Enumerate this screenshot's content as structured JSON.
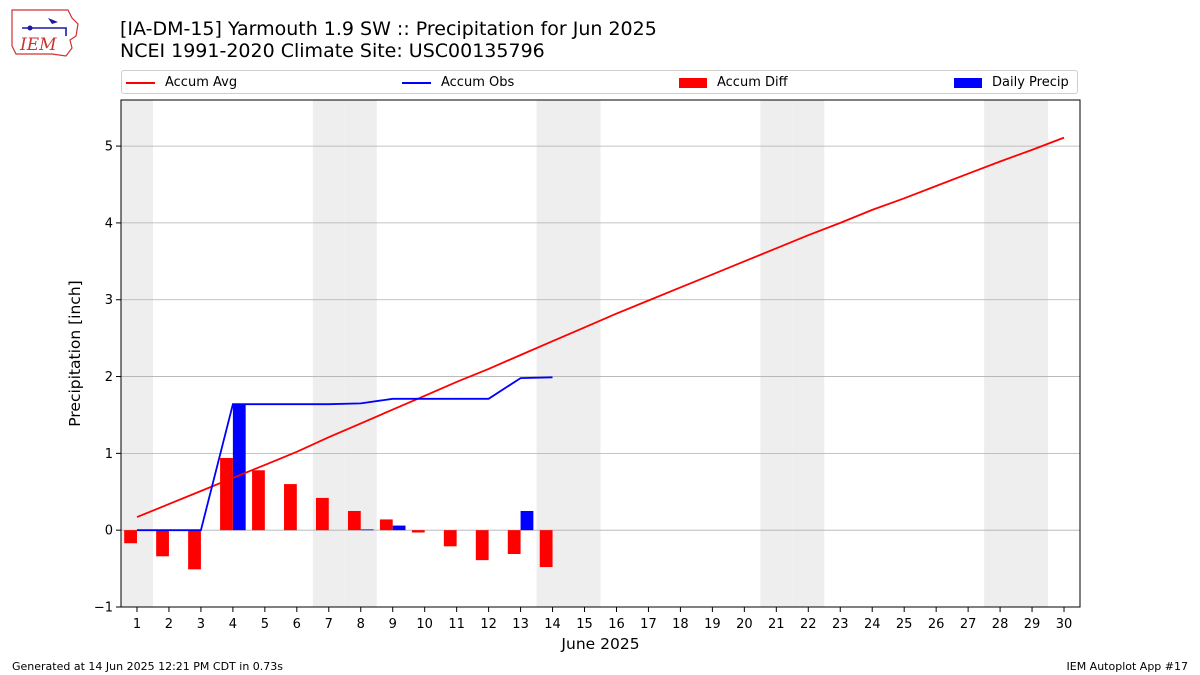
{
  "header": {
    "logo_text": "IEM",
    "title_line1": "[IA-DM-15] Yarmouth 1.9 SW :: Precipitation for Jun 2025",
    "title_line2": "NCEI 1991-2020 Climate Site: USC00135796"
  },
  "legend": {
    "accum_avg": "Accum Avg",
    "accum_obs": "Accum Obs",
    "accum_diff": "Accum Diff",
    "daily_precip": "Daily Precip"
  },
  "footer": {
    "left": "Generated at 14 Jun 2025 12:21 PM CDT in 0.73s",
    "right": "IEM Autoplot App #17"
  },
  "colors": {
    "accum_avg": "#ff0000",
    "accum_obs": "#0000ff",
    "accum_diff": "#ff0000",
    "daily_precip": "#0000ff",
    "weekend_shade": "#eeeeee",
    "grid": "#b0b0b0"
  },
  "chart_data": {
    "type": "bar",
    "title": "[IA-DM-15] Yarmouth 1.9 SW :: Precipitation for Jun 2025",
    "subtitle": "NCEI 1991-2020 Climate Site: USC00135796",
    "xlabel": "June 2025",
    "ylabel": "Precipitation [inch]",
    "xlim": [
      0.5,
      30.5
    ],
    "ylim": [
      -1.0,
      5.6
    ],
    "x_ticks": [
      1,
      2,
      3,
      4,
      5,
      6,
      7,
      8,
      9,
      10,
      11,
      12,
      13,
      14,
      15,
      16,
      17,
      18,
      19,
      20,
      21,
      22,
      23,
      24,
      25,
      26,
      27,
      28,
      29,
      30
    ],
    "y_ticks": [
      -1,
      0,
      1,
      2,
      3,
      4,
      5
    ],
    "grid": "horizontal",
    "legend_position": "top",
    "weekend_days": [
      1,
      7,
      8,
      14,
      15,
      21,
      22,
      28,
      29
    ],
    "series": [
      {
        "name": "Accum Avg",
        "type": "line",
        "x": [
          1,
          2,
          3,
          4,
          5,
          6,
          7,
          8,
          9,
          10,
          11,
          12,
          13,
          14,
          15,
          16,
          17,
          18,
          19,
          20,
          21,
          22,
          23,
          24,
          25,
          26,
          27,
          28,
          29,
          30
        ],
        "values": [
          0.17,
          0.34,
          0.51,
          0.68,
          0.85,
          1.02,
          1.21,
          1.39,
          1.57,
          1.75,
          1.93,
          2.1,
          2.28,
          2.46,
          2.64,
          2.82,
          2.99,
          3.16,
          3.33,
          3.5,
          3.67,
          3.84,
          4.0,
          4.17,
          4.32,
          4.48,
          4.64,
          4.8,
          4.95,
          5.11
        ]
      },
      {
        "name": "Accum Obs",
        "type": "line",
        "x": [
          1,
          2,
          3,
          4,
          5,
          6,
          7,
          8,
          9,
          10,
          11,
          12,
          13,
          14
        ],
        "values": [
          0.0,
          0.0,
          0.0,
          1.64,
          1.64,
          1.64,
          1.64,
          1.65,
          1.71,
          1.71,
          1.71,
          1.71,
          1.98,
          1.99
        ]
      },
      {
        "name": "Accum Diff",
        "type": "bar",
        "x": [
          1,
          2,
          3,
          4,
          5,
          6,
          7,
          8,
          9,
          10,
          11,
          12,
          13,
          14
        ],
        "values": [
          -0.17,
          -0.34,
          -0.51,
          0.94,
          0.78,
          0.6,
          0.42,
          0.25,
          0.14,
          -0.03,
          -0.21,
          -0.39,
          -0.31,
          -0.48
        ]
      },
      {
        "name": "Daily Precip",
        "type": "bar",
        "x": [
          1,
          2,
          3,
          4,
          5,
          6,
          7,
          8,
          9,
          10,
          11,
          12,
          13,
          14
        ],
        "values": [
          0.0,
          0.0,
          0.0,
          1.64,
          0.0,
          0.0,
          0.0,
          0.01,
          0.06,
          0.0,
          0.0,
          0.0,
          0.25,
          0.0
        ]
      }
    ]
  }
}
